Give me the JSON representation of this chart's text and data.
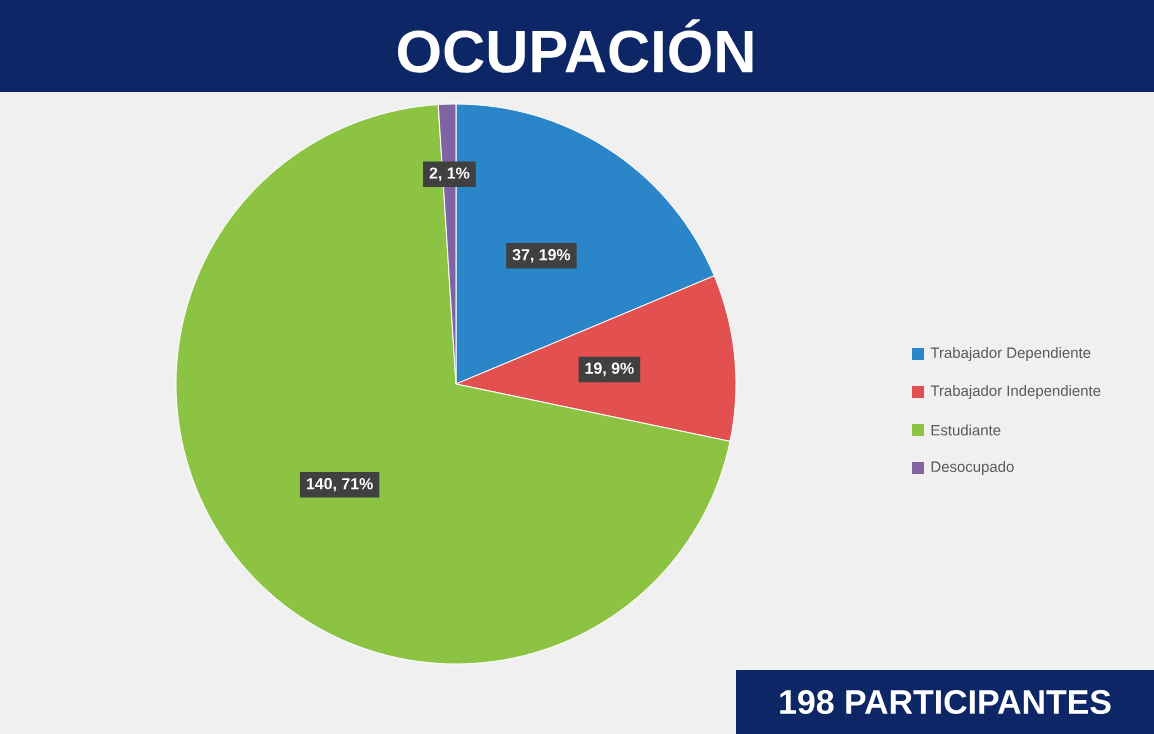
{
  "chart_data": {
    "type": "pie",
    "title": "OCUPACIÓN",
    "categories": [
      "Trabajador Dependiente",
      "Trabajador Independiente",
      "Estudiante",
      "Desocupado"
    ],
    "values": [
      37,
      19,
      140,
      2
    ],
    "colors": [
      "#2a86c8",
      "#e2514f",
      "#8cc342",
      "#8064a2"
    ],
    "value_labels": [
      "37, 19%",
      "19, 9%",
      "140, 71%",
      "2, 1%"
    ],
    "legend": "right",
    "annotations": [
      "198 PARTICIPANTES"
    ]
  }
}
